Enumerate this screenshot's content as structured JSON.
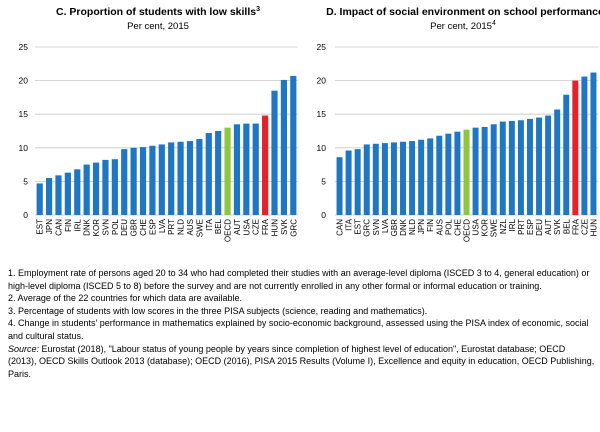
{
  "chart_data": [
    {
      "type": "bar",
      "title": "C. Proportion of students with low skills",
      "title_superscript": "3",
      "subtitle": "Per cent, 2015",
      "subtitle_superscript": "",
      "ylim": [
        0,
        25
      ],
      "yticks": [
        0,
        5,
        10,
        15,
        20,
        25
      ],
      "grid": true,
      "categories": [
        "EST",
        "JPN",
        "CAN",
        "FIN",
        "IRL",
        "DNK",
        "KOR",
        "SVN",
        "POL",
        "DEU",
        "GBR",
        "CHE",
        "ESP",
        "LVA",
        "PRT",
        "NLD",
        "AUS",
        "SWE",
        "ITA",
        "BEL",
        "OECD",
        "AUT",
        "USA",
        "CZE",
        "FRA",
        "HUN",
        "SVK",
        "GRC"
      ],
      "values": [
        4.7,
        5.5,
        5.9,
        6.3,
        6.8,
        7.5,
        7.8,
        8.2,
        8.3,
        9.8,
        10.0,
        10.1,
        10.3,
        10.5,
        10.8,
        10.9,
        11.0,
        11.3,
        12.2,
        12.5,
        13.0,
        13.5,
        13.6,
        13.6,
        14.8,
        18.5,
        20.1,
        20.7
      ],
      "highlight": {
        "OECD": "#8dc63f",
        "FRA": "#e8202a"
      },
      "bar_color": "#1f77c4"
    },
    {
      "type": "bar",
      "title": "D. Impact of social environment on school performance",
      "title_superscript": "",
      "subtitle": "Per cent, 2015",
      "subtitle_superscript": "4",
      "ylim": [
        0,
        25
      ],
      "yticks": [
        0,
        5,
        10,
        15,
        20,
        25
      ],
      "grid": true,
      "categories": [
        "CAN",
        "ITA",
        "EST",
        "GRC",
        "SVN",
        "LVA",
        "GBR",
        "DNK",
        "NLD",
        "JPN",
        "FIN",
        "AUS",
        "POL",
        "CHE",
        "OECD",
        "USA",
        "KOR",
        "SWE",
        "NZL",
        "IRL",
        "PRT",
        "ESP",
        "DEU",
        "AUT",
        "SVK",
        "BEL",
        "FRA",
        "CZE",
        "HUN"
      ],
      "values": [
        8.6,
        9.6,
        9.8,
        10.5,
        10.6,
        10.7,
        10.8,
        10.9,
        11.0,
        11.2,
        11.4,
        11.8,
        12.1,
        12.4,
        12.7,
        13.0,
        13.1,
        13.5,
        13.9,
        14.0,
        14.1,
        14.3,
        14.5,
        14.8,
        15.7,
        17.9,
        20.0,
        20.6,
        21.2
      ],
      "highlight": {
        "OECD": "#8dc63f",
        "FRA": "#e8202a"
      },
      "bar_color": "#1f77c4"
    }
  ],
  "notes": [
    "1. Employment rate of persons aged 20 to 34 who had completed their studies with an average-level diploma (ISCED 3 to 4, general education) or high-level diploma (ISCED 5 to 8) before the survey and are not currently enrolled in any other formal or informal education or training.",
    "2. Average of the 22 countries for which data are available.",
    "3. Percentage of students with low scores in the three PISA subjects (science, reading and mathematics).",
    "4. Change in students' performance in mathematics explained by socio-economic background, assessed using the PISA index of economic, social and cultural status."
  ],
  "source": {
    "label": "Source:",
    "text": " Eurostat (2018), \"Labour status of young people by years since completion of highest level of education\", Eurostat database; OECD (2013), OECD Skills Outlook 2013 (database); OECD (2016), PISA 2015 Results (Volume I), Excellence and equity in education, OECD Publishing, Paris."
  }
}
